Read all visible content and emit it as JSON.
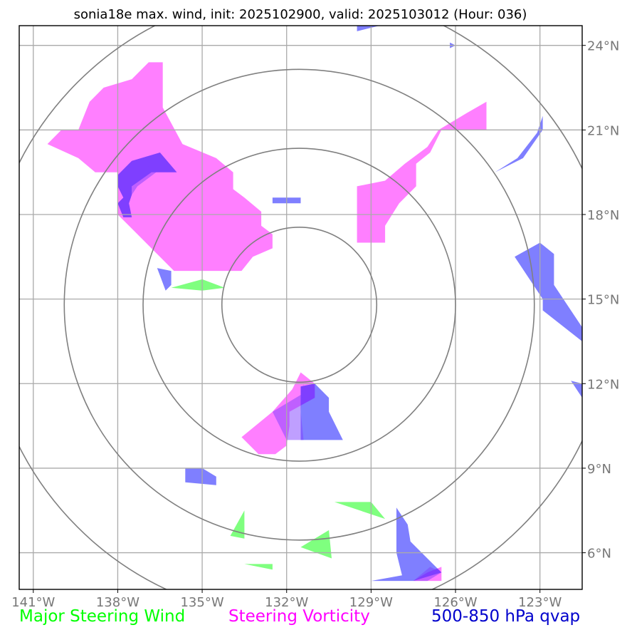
{
  "chart_data": {
    "type": "map",
    "title": "sonia18e max. wind, init: 2025102900, valid: 2025103012 (Hour: 036)",
    "x_range": [
      -141.5,
      -121.5
    ],
    "y_range": [
      4.7,
      24.7
    ],
    "x_ticks": [
      {
        "value": -141,
        "label": "141°W"
      },
      {
        "value": -138,
        "label": "138°W"
      },
      {
        "value": -135,
        "label": "135°W"
      },
      {
        "value": -132,
        "label": "132°W"
      },
      {
        "value": -129,
        "label": "129°W"
      },
      {
        "value": -126,
        "label": "126°W"
      },
      {
        "value": -123,
        "label": "123°W"
      }
    ],
    "y_ticks": [
      {
        "value": 24,
        "label": "24°N"
      },
      {
        "value": 21,
        "label": "21°N"
      },
      {
        "value": 18,
        "label": "18°N"
      },
      {
        "value": 15,
        "label": "15°N"
      },
      {
        "value": 12,
        "label": "12°N"
      },
      {
        "value": 9,
        "label": "9°N"
      },
      {
        "value": 6,
        "label": "6°N"
      }
    ],
    "range_rings": {
      "center": [
        -131.55,
        14.8
      ],
      "radii_deg": [
        2.75,
        5.55,
        8.35,
        11.15
      ]
    },
    "layers": [
      {
        "name": "Steering Vorticity",
        "color": "#ff00ff",
        "polygons": [
          [
            [
              -140.5,
              20.5
            ],
            [
              -140,
              21.0
            ],
            [
              -139.4,
              21.0
            ],
            [
              -139,
              22.0
            ],
            [
              -138.5,
              22.5
            ],
            [
              -137.5,
              22.8
            ],
            [
              -136.9,
              23.4
            ],
            [
              -136.4,
              23.4
            ],
            [
              -136.4,
              21.8
            ],
            [
              -135.7,
              20.5
            ],
            [
              -134.5,
              20.0
            ],
            [
              -133.9,
              19.5
            ],
            [
              -133.9,
              18.9
            ],
            [
              -133.5,
              18.6
            ],
            [
              -132.9,
              18.1
            ],
            [
              -132.9,
              17.6
            ],
            [
              -132.5,
              17.3
            ],
            [
              -132.5,
              16.8
            ],
            [
              -133.2,
              16.5
            ],
            [
              -133.6,
              16.0
            ],
            [
              -136.0,
              16.0
            ],
            [
              -137.5,
              17.5
            ],
            [
              -138.0,
              18.0
            ],
            [
              -138.0,
              19.5
            ],
            [
              -138.8,
              19.5
            ],
            [
              -139.4,
              20.0
            ],
            [
              -140.5,
              20.5
            ]
          ],
          [
            [
              -129.5,
              19.0
            ],
            [
              -128.5,
              19.2
            ],
            [
              -127.8,
              19.8
            ],
            [
              -127.0,
              20.4
            ],
            [
              -126.6,
              21.0
            ],
            [
              -125.6,
              21.6
            ],
            [
              -124.9,
              22.0
            ],
            [
              -124.9,
              21.0
            ],
            [
              -126.5,
              21.0
            ],
            [
              -126.9,
              20.2
            ],
            [
              -127.4,
              19.8
            ],
            [
              -127.4,
              19.0
            ],
            [
              -128.0,
              18.4
            ],
            [
              -128.5,
              17.6
            ],
            [
              -128.5,
              17.0
            ],
            [
              -129.5,
              17.0
            ],
            [
              -129.5,
              19.0
            ]
          ],
          [
            [
              -133.6,
              10.1
            ],
            [
              -132.5,
              11.0
            ],
            [
              -131.8,
              11.8
            ],
            [
              -131.5,
              12.4
            ],
            [
              -131.0,
              12.0
            ],
            [
              -131.0,
              11.5
            ],
            [
              -131.9,
              11.0
            ],
            [
              -131.9,
              10.5
            ],
            [
              -132.0,
              9.8
            ],
            [
              -132.4,
              9.5
            ],
            [
              -133.0,
              9.5
            ],
            [
              -133.6,
              10.1
            ]
          ],
          [
            [
              -127.5,
              5.0
            ],
            [
              -126.5,
              5.0
            ],
            [
              -126.5,
              5.5
            ],
            [
              -127.0,
              5.3
            ],
            [
              -127.5,
              5.0
            ]
          ]
        ]
      },
      {
        "name": "500-850 hPa qvap",
        "color": "#0000ff",
        "polygons": [
          [
            [
              -138.0,
              19.4
            ],
            [
              -137.5,
              19.9
            ],
            [
              -136.5,
              20.2
            ],
            [
              -135.9,
              19.5
            ],
            [
              -136.8,
              19.5
            ],
            [
              -137.5,
              19.0
            ],
            [
              -137.5,
              18.7
            ],
            [
              -137.6,
              18.4
            ],
            [
              -137.5,
              17.9
            ],
            [
              -137.8,
              17.9
            ],
            [
              -138.0,
              18.4
            ],
            [
              -137.8,
              18.6
            ],
            [
              -138.0,
              19.0
            ],
            [
              -138.0,
              19.4
            ]
          ],
          [
            [
              -136.6,
              16.1
            ],
            [
              -136.1,
              16.0
            ],
            [
              -136.1,
              15.5
            ],
            [
              -136.3,
              15.3
            ],
            [
              -136.6,
              16.1
            ]
          ],
          [
            [
              -132.5,
              18.6
            ],
            [
              -131.5,
              18.6
            ],
            [
              -131.5,
              18.4
            ],
            [
              -132.5,
              18.4
            ],
            [
              -132.5,
              18.6
            ]
          ],
          [
            [
              -124.6,
              19.5
            ],
            [
              -123.8,
              20.0
            ],
            [
              -123.1,
              20.9
            ],
            [
              -122.9,
              21.5
            ],
            [
              -122.9,
              21.0
            ],
            [
              -123.6,
              20.0
            ],
            [
              -124.6,
              19.5
            ]
          ],
          [
            [
              -123.0,
              17.0
            ],
            [
              -122.5,
              16.6
            ],
            [
              -122.5,
              15.5
            ],
            [
              -121.5,
              14.0
            ],
            [
              -121.5,
              13.5
            ],
            [
              -122.9,
              14.6
            ],
            [
              -122.9,
              15.0
            ],
            [
              -123.9,
              16.5
            ],
            [
              -123.0,
              17.0
            ]
          ],
          [
            [
              -131.5,
              11.9
            ],
            [
              -131.0,
              12.0
            ],
            [
              -130.5,
              11.5
            ],
            [
              -130.5,
              11.0
            ],
            [
              -130.0,
              10.0
            ],
            [
              -131.5,
              10.0
            ],
            [
              -131.5,
              11.9
            ]
          ],
          [
            [
              -121.5,
              11.5
            ],
            [
              -121.9,
              12.1
            ],
            [
              -121.5,
              12.0
            ],
            [
              -121.5,
              11.5
            ]
          ],
          [
            [
              -135.6,
              9.0
            ],
            [
              -135.0,
              9.0
            ],
            [
              -134.5,
              8.7
            ],
            [
              -134.5,
              8.4
            ],
            [
              -135.6,
              8.5
            ],
            [
              -135.6,
              9.0
            ]
          ],
          [
            [
              -128.1,
              7.6
            ],
            [
              -127.7,
              7.0
            ],
            [
              -127.6,
              6.4
            ],
            [
              -127.2,
              6.0
            ],
            [
              -126.5,
              5.3
            ],
            [
              -127.5,
              5.0
            ],
            [
              -129.0,
              5.0
            ],
            [
              -127.9,
              5.2
            ],
            [
              -128.1,
              6.0
            ],
            [
              -128.1,
              7.0
            ],
            [
              -128.1,
              7.6
            ]
          ],
          [
            [
              -126.2,
              24.1
            ],
            [
              -126.0,
              24.0
            ],
            [
              -126.2,
              23.9
            ],
            [
              -126.2,
              24.1
            ]
          ],
          [
            [
              -129.5,
              24.5
            ],
            [
              -128.7,
              24.7
            ],
            [
              -129.5,
              24.7
            ],
            [
              -129.5,
              24.5
            ]
          ]
        ]
      },
      {
        "name": "Major Steering Wind",
        "color": "#00ff00",
        "polygons": [
          [
            [
              -136.1,
              15.4
            ],
            [
              -135.0,
              15.7
            ],
            [
              -134.2,
              15.4
            ],
            [
              -135.0,
              15.3
            ],
            [
              -136.1,
              15.4
            ]
          ],
          [
            [
              -134.0,
              6.6
            ],
            [
              -133.5,
              7.5
            ],
            [
              -133.5,
              6.5
            ],
            [
              -134.0,
              6.6
            ]
          ],
          [
            [
              -131.5,
              6.2
            ],
            [
              -130.5,
              6.8
            ],
            [
              -130.4,
              5.8
            ],
            [
              -131.5,
              6.2
            ]
          ],
          [
            [
              -133.5,
              5.6
            ],
            [
              -132.5,
              5.6
            ],
            [
              -132.5,
              5.4
            ],
            [
              -133.5,
              5.6
            ]
          ],
          [
            [
              -130.3,
              7.8
            ],
            [
              -129.0,
              7.8
            ],
            [
              -128.5,
              7.2
            ],
            [
              -130.3,
              7.8
            ]
          ],
          [
            [
              -135.9,
              9.5
            ],
            [
              -135.0,
              9.5
            ],
            [
              -135.9,
              9.5
            ]
          ]
        ]
      },
      {
        "name": "Overlap (qvap + vorticity)",
        "color": "#7f3fff",
        "polygons": [
          [
            [
              -137.5,
              19.0
            ],
            [
              -137.0,
              19.5
            ],
            [
              -136.8,
              20.0
            ],
            [
              -136.5,
              19.6
            ],
            [
              -137.3,
              19.0
            ],
            [
              -137.5,
              18.7
            ],
            [
              -137.5,
              19.0
            ]
          ],
          [
            [
              -132.5,
              11.0
            ],
            [
              -131.5,
              11.6
            ],
            [
              -131.4,
              12.0
            ],
            [
              -131.5,
              11.0
            ],
            [
              -131.4,
              10.0
            ],
            [
              -132.0,
              10.0
            ],
            [
              -132.5,
              11.0
            ]
          ],
          [
            [
              -127.5,
              5.0
            ],
            [
              -126.9,
              5.5
            ],
            [
              -126.5,
              5.3
            ],
            [
              -127.0,
              5.0
            ],
            [
              -127.5,
              5.0
            ]
          ]
        ]
      }
    ],
    "legend": [
      {
        "label": "Major Steering Wind",
        "color": "#00ff00"
      },
      {
        "label": "Steering Vorticity",
        "color": "#ff00ff"
      },
      {
        "label": "500-850 hPa qvap",
        "color": "#0000cc"
      }
    ]
  }
}
